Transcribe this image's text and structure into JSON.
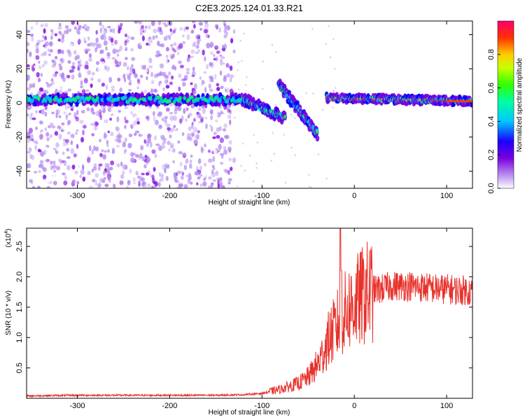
{
  "title": "C2E3.2025.124.01.33.R21",
  "chart_data": [
    {
      "type": "heatmap",
      "xlabel": "Height of straight line (km)",
      "ylabel": "Frequency (Hz)",
      "xlim": [
        -355,
        128
      ],
      "ylim": [
        -50,
        48
      ],
      "x_ticks": [
        -300,
        -200,
        -100,
        0,
        100
      ],
      "y_ticks": [
        -40,
        -20,
        0,
        20,
        40
      ],
      "colorbar": {
        "label": "Normalized spectral amplitude",
        "range": [
          0,
          1
        ],
        "ticks": [
          0.0,
          0.2,
          0.4,
          0.6,
          0.8
        ],
        "colors": [
          "#ffffff",
          "#b088f0",
          "#7a00e0",
          "#0000ff",
          "#00c8ff",
          "#00ff66",
          "#c8ff00",
          "#ffcc00",
          "#ff3300",
          "#ff0070"
        ]
      },
      "main_band": {
        "x": [
          -355,
          -120
        ],
        "freq_hz": 2
      },
      "features": [
        {
          "x": [
            -120,
            -75
          ],
          "freq_hz": [
            2,
            -9
          ]
        },
        {
          "x": [
            -82,
            -40
          ],
          "freq_hz": [
            11,
            -18
          ]
        },
        {
          "x": [
            -30,
            128
          ],
          "freq_hz": [
            3,
            1
          ]
        }
      ],
      "noise_region_x": [
        -355,
        -130
      ]
    },
    {
      "type": "line",
      "xlabel": "Height of straight line (km)",
      "ylabel": "SNR (10 * v/v)",
      "y_scale_label": "(x10",
      "y_scale_exp": "4",
      "y_scale_suffix": ")",
      "xlim": [
        -355,
        128
      ],
      "ylim": [
        0,
        2.8
      ],
      "x_ticks": [
        -300,
        -200,
        -100,
        0,
        100
      ],
      "y_ticks": [
        0.5,
        1.0,
        1.5,
        2.0,
        2.5
      ],
      "series": [
        {
          "color": "#e8302a",
          "x": [
            -355,
            -300,
            -250,
            -200,
            -150,
            -120,
            -100,
            -90,
            -80,
            -70,
            -60,
            -50,
            -45,
            -40,
            -35,
            -30,
            -25,
            -20,
            -16,
            -14,
            -10,
            -5,
            0,
            5,
            10,
            15,
            20,
            30,
            40,
            50,
            60,
            70,
            80,
            90,
            100,
            110,
            120,
            128
          ],
          "y": [
            0.04,
            0.05,
            0.05,
            0.05,
            0.05,
            0.06,
            0.08,
            0.12,
            0.15,
            0.2,
            0.25,
            0.35,
            0.45,
            0.55,
            0.7,
            0.9,
            1.05,
            1.15,
            1.3,
            1.35,
            1.4,
            1.5,
            1.55,
            1.62,
            1.7,
            1.75,
            1.78,
            1.8,
            1.85,
            1.85,
            1.85,
            1.83,
            1.82,
            1.8,
            1.8,
            1.78,
            1.78,
            1.75
          ]
        }
      ],
      "spikes": [
        {
          "x": -15,
          "y": 2.8
        },
        {
          "x": -14,
          "y": 2.1
        }
      ]
    }
  ]
}
